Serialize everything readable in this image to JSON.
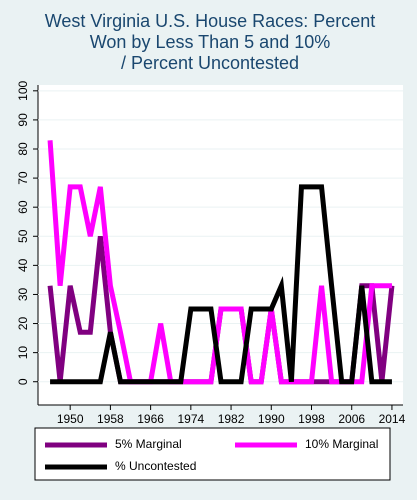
{
  "chart_data": {
    "type": "line",
    "title": [
      "West Virginia U.S. House Races: Percent",
      "Won by Less Than 5 and 10%",
      "/ Percent Uncontested"
    ],
    "x": [
      1946,
      1948,
      1950,
      1952,
      1954,
      1956,
      1958,
      1960,
      1962,
      1964,
      1966,
      1968,
      1970,
      1972,
      1974,
      1976,
      1978,
      1980,
      1982,
      1984,
      1986,
      1988,
      1990,
      1992,
      1994,
      1996,
      1998,
      2000,
      2002,
      2004,
      2006,
      2008,
      2010,
      2012,
      2014
    ],
    "series": [
      {
        "name": "5% Marginal",
        "color": "#800080",
        "values": [
          33,
          0,
          33,
          17,
          17,
          50,
          17,
          0,
          0,
          0,
          0,
          0,
          0,
          0,
          0,
          0,
          0,
          25,
          25,
          25,
          0,
          0,
          25,
          0,
          0,
          0,
          0,
          0,
          0,
          0,
          0,
          33,
          33,
          0,
          33
        ]
      },
      {
        "name": "10% Marginal",
        "color": "#ff00ff",
        "values": [
          83,
          33,
          67,
          67,
          50,
          67,
          33,
          17,
          0,
          0,
          0,
          20,
          0,
          0,
          0,
          0,
          0,
          25,
          25,
          25,
          0,
          0,
          25,
          0,
          0,
          0,
          0,
          33,
          0,
          0,
          0,
          0,
          33,
          33,
          33
        ]
      },
      {
        "name": "% Uncontested",
        "color": "#000000",
        "values": [
          0,
          0,
          0,
          0,
          0,
          0,
          17,
          0,
          0,
          0,
          0,
          0,
          0,
          0,
          25,
          25,
          25,
          0,
          0,
          0,
          25,
          25,
          25,
          33,
          0,
          67,
          67,
          67,
          33,
          0,
          0,
          33,
          0,
          0,
          0
        ]
      }
    ],
    "xlim": [
      1943.6,
      2016.2
    ],
    "xticks": [
      1950,
      1958,
      1966,
      1974,
      1982,
      1990,
      1998,
      2006,
      2014
    ],
    "ylim": [
      -8,
      102
    ],
    "yticks": [
      0,
      10,
      20,
      30,
      40,
      50,
      60,
      70,
      80,
      90,
      100
    ],
    "grid": true,
    "legend": "bottom"
  }
}
